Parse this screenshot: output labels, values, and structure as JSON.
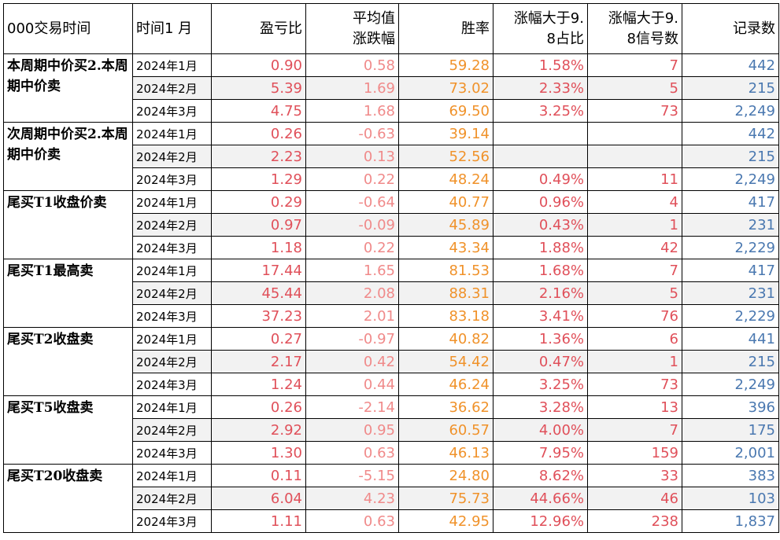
{
  "headers": {
    "col0": "000交易时间",
    "col1": "时间1 月",
    "col2": "盈亏比",
    "col3a": "平均值",
    "col3b": "涨跌幅",
    "col4": "胜率",
    "col5a": "涨幅大于9.",
    "col5b": "8占比",
    "col6a": "涨幅大于9.",
    "col6b": "8信号数",
    "col7": "记录数"
  },
  "groups": [
    {
      "name": "本周期中价买2.本周期中价卖",
      "rows": [
        {
          "date": "2024年1月",
          "pl": "0.90",
          "avg": "0.58",
          "win": "59.28",
          "pct": "1.58%",
          "cnt": "7",
          "rec": "442"
        },
        {
          "date": "2024年2月",
          "pl": "5.39",
          "avg": "1.69",
          "win": "73.02",
          "pct": "2.33%",
          "cnt": "5",
          "rec": "215"
        },
        {
          "date": "2024年3月",
          "pl": "4.75",
          "avg": "1.68",
          "win": "69.50",
          "pct": "3.25%",
          "cnt": "73",
          "rec": "2,249"
        }
      ]
    },
    {
      "name": "次周期中价买2.本周期中价卖",
      "rows": [
        {
          "date": "2024年1月",
          "pl": "0.26",
          "avg": "-0.63",
          "win": "39.14",
          "pct": "",
          "cnt": "",
          "rec": "442"
        },
        {
          "date": "2024年2月",
          "pl": "2.23",
          "avg": "0.13",
          "win": "52.56",
          "pct": "",
          "cnt": "",
          "rec": "215"
        },
        {
          "date": "2024年3月",
          "pl": "1.29",
          "avg": "0.22",
          "win": "48.24",
          "pct": "0.49%",
          "cnt": "11",
          "rec": "2,249"
        }
      ]
    },
    {
      "name": "尾买T1收盘价卖",
      "rows": [
        {
          "date": "2024年1月",
          "pl": "0.29",
          "avg": "-0.64",
          "win": "40.77",
          "pct": "0.96%",
          "cnt": "4",
          "rec": "417"
        },
        {
          "date": "2024年2月",
          "pl": "0.97",
          "avg": "-0.09",
          "win": "45.89",
          "pct": "0.43%",
          "cnt": "1",
          "rec": "231"
        },
        {
          "date": "2024年3月",
          "pl": "1.18",
          "avg": "0.22",
          "win": "43.34",
          "pct": "1.88%",
          "cnt": "42",
          "rec": "2,229"
        }
      ]
    },
    {
      "name": "尾买T1最高卖",
      "rows": [
        {
          "date": "2024年1月",
          "pl": "17.44",
          "avg": "1.65",
          "win": "81.53",
          "pct": "1.68%",
          "cnt": "7",
          "rec": "417"
        },
        {
          "date": "2024年2月",
          "pl": "45.44",
          "avg": "2.08",
          "win": "88.31",
          "pct": "2.16%",
          "cnt": "5",
          "rec": "231"
        },
        {
          "date": "2024年3月",
          "pl": "37.23",
          "avg": "2.01",
          "win": "83.18",
          "pct": "3.41%",
          "cnt": "76",
          "rec": "2,229"
        }
      ]
    },
    {
      "name": "尾买T2收盘卖",
      "rows": [
        {
          "date": "2024年1月",
          "pl": "0.27",
          "avg": "-0.97",
          "win": "40.82",
          "pct": "1.36%",
          "cnt": "6",
          "rec": "441"
        },
        {
          "date": "2024年2月",
          "pl": "2.17",
          "avg": "0.42",
          "win": "54.42",
          "pct": "0.47%",
          "cnt": "1",
          "rec": "215"
        },
        {
          "date": "2024年3月",
          "pl": "1.24",
          "avg": "0.44",
          "win": "46.24",
          "pct": "3.25%",
          "cnt": "73",
          "rec": "2,249"
        }
      ]
    },
    {
      "name": "尾买T5收盘卖",
      "rows": [
        {
          "date": "2024年1月",
          "pl": "0.26",
          "avg": "-2.14",
          "win": "36.62",
          "pct": "3.28%",
          "cnt": "13",
          "rec": "396"
        },
        {
          "date": "2024年2月",
          "pl": "2.92",
          "avg": "0.95",
          "win": "60.57",
          "pct": "4.00%",
          "cnt": "7",
          "rec": "175"
        },
        {
          "date": "2024年3月",
          "pl": "1.30",
          "avg": "0.63",
          "win": "46.13",
          "pct": "7.95%",
          "cnt": "159",
          "rec": "2,001"
        }
      ]
    },
    {
      "name": "尾买T20收盘卖",
      "rows": [
        {
          "date": "2024年1月",
          "pl": "0.11",
          "avg": "-5.15",
          "win": "24.80",
          "pct": "8.62%",
          "cnt": "33",
          "rec": "383"
        },
        {
          "date": "2024年2月",
          "pl": "6.04",
          "avg": "4.23",
          "win": "75.73",
          "pct": "44.66%",
          "cnt": "46",
          "rec": "103"
        },
        {
          "date": "2024年3月",
          "pl": "1.11",
          "avg": "0.63",
          "win": "42.95",
          "pct": "12.96%",
          "cnt": "238",
          "rec": "1,837"
        }
      ]
    }
  ]
}
